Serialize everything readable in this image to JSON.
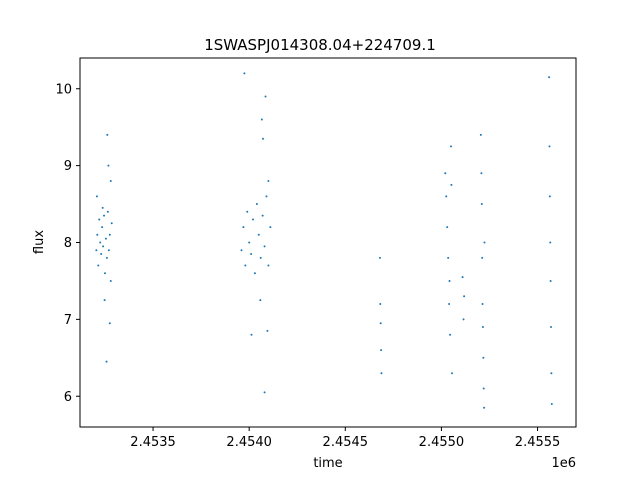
{
  "chart_data": {
    "type": "scatter",
    "title": "1SWASPJ014308.04+224709.1",
    "xlabel": "time",
    "ylabel": "flux",
    "x_offset_label": "1e6",
    "xlim": [
      2453120,
      2455700
    ],
    "ylim": [
      5.6,
      10.4
    ],
    "x_ticks": [
      2453500,
      2454000,
      2454500,
      2455000,
      2455500
    ],
    "x_tick_labels": [
      "2.4535",
      "2.4540",
      "2.4545",
      "2.4550",
      "2.4555"
    ],
    "y_ticks": [
      6,
      7,
      8,
      9,
      10
    ],
    "y_tick_labels": [
      "6",
      "7",
      "8",
      "9",
      "10"
    ],
    "grid": false,
    "marker_color": "#1f77b4",
    "series": [
      {
        "name": "",
        "points": [
          [
            2453205,
            7.9
          ],
          [
            2453210,
            8.1
          ],
          [
            2453215,
            7.7
          ],
          [
            2453220,
            8.3
          ],
          [
            2453225,
            8.0
          ],
          [
            2453230,
            7.85
          ],
          [
            2453235,
            8.2
          ],
          [
            2453240,
            7.95
          ],
          [
            2453245,
            8.35
          ],
          [
            2453250,
            7.6
          ],
          [
            2453255,
            8.05
          ],
          [
            2453260,
            7.8
          ],
          [
            2453265,
            8.4
          ],
          [
            2453270,
            7.9
          ],
          [
            2453275,
            8.1
          ],
          [
            2453280,
            7.5
          ],
          [
            2453285,
            8.25
          ],
          [
            2453208,
            8.6
          ],
          [
            2453262,
            9.4
          ],
          [
            2453268,
            9.0
          ],
          [
            2453258,
            6.45
          ],
          [
            2453275,
            6.95
          ],
          [
            2453248,
            7.25
          ],
          [
            2453280,
            8.8
          ],
          [
            2453238,
            8.45
          ],
          [
            2453960,
            7.9
          ],
          [
            2453970,
            8.2
          ],
          [
            2453980,
            7.7
          ],
          [
            2453990,
            8.4
          ],
          [
            2454000,
            8.0
          ],
          [
            2454010,
            7.85
          ],
          [
            2454020,
            8.3
          ],
          [
            2454030,
            7.6
          ],
          [
            2454040,
            8.5
          ],
          [
            2454050,
            8.1
          ],
          [
            2454060,
            7.8
          ],
          [
            2454070,
            8.35
          ],
          [
            2454080,
            7.95
          ],
          [
            2454090,
            8.6
          ],
          [
            2454100,
            7.7
          ],
          [
            2454110,
            8.2
          ],
          [
            2453975,
            10.2
          ],
          [
            2454085,
            9.9
          ],
          [
            2454072,
            9.35
          ],
          [
            2454066,
            9.6
          ],
          [
            2454012,
            6.8
          ],
          [
            2454095,
            6.85
          ],
          [
            2454080,
            6.05
          ],
          [
            2454058,
            7.25
          ],
          [
            2454100,
            8.8
          ],
          [
            2454680,
            7.8
          ],
          [
            2454682,
            7.2
          ],
          [
            2454684,
            6.95
          ],
          [
            2454686,
            6.6
          ],
          [
            2454688,
            6.3
          ],
          [
            2455020,
            8.9
          ],
          [
            2455025,
            8.6
          ],
          [
            2455030,
            8.2
          ],
          [
            2455035,
            7.8
          ],
          [
            2455040,
            7.2
          ],
          [
            2455045,
            6.8
          ],
          [
            2455050,
            9.25
          ],
          [
            2455055,
            6.3
          ],
          [
            2455042,
            7.5
          ],
          [
            2455052,
            8.75
          ],
          [
            2455110,
            7.55
          ],
          [
            2455115,
            7.0
          ],
          [
            2455118,
            7.3
          ],
          [
            2455205,
            9.4
          ],
          [
            2455208,
            8.9
          ],
          [
            2455210,
            8.5
          ],
          [
            2455212,
            7.8
          ],
          [
            2455214,
            7.2
          ],
          [
            2455216,
            6.9
          ],
          [
            2455218,
            6.5
          ],
          [
            2455220,
            6.1
          ],
          [
            2455222,
            5.85
          ],
          [
            2455224,
            8.0
          ],
          [
            2455560,
            10.15
          ],
          [
            2455562,
            9.25
          ],
          [
            2455564,
            8.6
          ],
          [
            2455566,
            8.0
          ],
          [
            2455568,
            7.5
          ],
          [
            2455570,
            6.9
          ],
          [
            2455572,
            6.3
          ],
          [
            2455574,
            5.9
          ]
        ]
      }
    ]
  }
}
